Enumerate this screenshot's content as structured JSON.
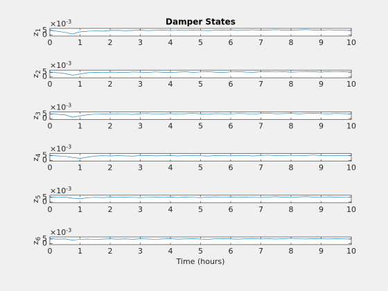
{
  "chart_data": [
    {
      "type": "line",
      "title": "Damper States",
      "ylabel": "z",
      "ylabel_subscript": "1",
      "exponent_base": "×10",
      "exponent_power": "-3",
      "x": [
        0,
        0.25,
        0.5,
        0.75,
        1,
        1.25,
        1.5,
        1.75,
        2,
        2.25,
        2.5,
        2.75,
        3,
        3.25,
        3.5,
        3.75,
        4,
        4.25,
        4.5,
        4.75,
        5,
        5.25,
        5.5,
        5.75,
        6,
        6.25,
        6.5,
        6.75,
        7,
        7.25,
        7.5,
        7.75,
        8,
        8.25,
        8.5,
        8.75,
        9,
        9.25,
        9.5,
        9.75,
        10
      ],
      "series": [
        {
          "color": "#0072bd",
          "values": [
            0.0052,
            0.0041,
            0.003,
            0.0012,
            0.0035,
            0.0042,
            0.0046,
            0.0043,
            0.0049,
            0.0051,
            0.0047,
            0.005,
            0.0053,
            0.0048,
            0.0051,
            0.0054,
            0.0049,
            0.0052,
            0.005,
            0.0055,
            0.0051,
            0.0048,
            0.0052,
            0.0056,
            0.0053,
            0.005,
            0.0054,
            0.0057,
            0.0052,
            0.0055,
            0.0058,
            0.0054,
            0.0051,
            0.0056,
            0.0059,
            0.0055,
            0.0052,
            0.0057,
            0.0054,
            0.0051,
            0.0049
          ]
        }
      ],
      "xlim": [
        0,
        10
      ],
      "xticks": [
        0,
        1,
        2,
        3,
        4,
        5,
        6,
        7,
        8,
        9,
        10
      ],
      "ylim": [
        -0.001,
        0.0072
      ],
      "yticks": [
        0,
        {
          "value": 0.005,
          "label": "5"
        }
      ]
    },
    {
      "type": "line",
      "ylabel": "z",
      "ylabel_subscript": "2",
      "exponent_base": "×10",
      "exponent_power": "-3",
      "x": [
        0,
        0.25,
        0.5,
        0.75,
        1,
        1.25,
        1.5,
        1.75,
        2,
        2.25,
        2.5,
        2.75,
        3,
        3.25,
        3.5,
        3.75,
        4,
        4.25,
        4.5,
        4.75,
        5,
        5.25,
        5.5,
        5.75,
        6,
        6.25,
        6.5,
        6.75,
        7,
        7.25,
        7.5,
        7.75,
        8,
        8.25,
        8.5,
        8.75,
        9,
        9.25,
        9.5,
        9.75,
        10
      ],
      "series": [
        {
          "color": "#0072bd",
          "values": [
            0.0048,
            0.0044,
            0.0036,
            0.0018,
            0.003,
            0.0044,
            0.0048,
            0.0045,
            0.0051,
            0.0049,
            0.0046,
            0.0052,
            0.005,
            0.0047,
            0.0053,
            0.0049,
            0.0046,
            0.0051,
            0.0054,
            0.0048,
            0.0052,
            0.0055,
            0.005,
            0.0047,
            0.0053,
            0.0056,
            0.0051,
            0.0049,
            0.0054,
            0.0057,
            0.0052,
            0.0055,
            0.005,
            0.0053,
            0.0058,
            0.0054,
            0.0051,
            0.0056,
            0.0053,
            0.0055,
            0.005
          ]
        }
      ],
      "xlim": [
        0,
        10
      ],
      "xticks": [
        0,
        1,
        2,
        3,
        4,
        5,
        6,
        7,
        8,
        9,
        10
      ],
      "ylim": [
        -0.001,
        0.0072
      ],
      "yticks": [
        0,
        {
          "value": 0.005,
          "label": "5"
        }
      ]
    },
    {
      "type": "line",
      "ylabel": "z",
      "ylabel_subscript": "3",
      "exponent_base": "×10",
      "exponent_power": "-3",
      "x": [
        0,
        0.25,
        0.5,
        0.75,
        1,
        1.25,
        1.5,
        1.75,
        2,
        2.25,
        2.5,
        2.75,
        3,
        3.25,
        3.5,
        3.75,
        4,
        4.25,
        4.5,
        4.75,
        5,
        5.25,
        5.5,
        5.75,
        6,
        6.25,
        6.5,
        6.75,
        7,
        7.25,
        7.5,
        7.75,
        8,
        8.25,
        8.5,
        8.75,
        9,
        9.25,
        9.5,
        9.75,
        10
      ],
      "series": [
        {
          "color": "#0072bd",
          "values": [
            0.005,
            0.0046,
            0.004,
            0.0015,
            0.0028,
            0.0041,
            0.0047,
            0.005,
            0.0046,
            0.0052,
            0.0049,
            0.0045,
            0.0051,
            0.0054,
            0.0048,
            0.005,
            0.0053,
            0.0047,
            0.0052,
            0.0055,
            0.005,
            0.0046,
            0.0053,
            0.0051,
            0.0049,
            0.0055,
            0.0052,
            0.0048,
            0.0054,
            0.0057,
            0.0051,
            0.0053,
            0.0056,
            0.005,
            0.0054,
            0.0058,
            0.0053,
            0.005,
            0.0055,
            0.0052,
            0.005
          ]
        }
      ],
      "xlim": [
        0,
        10
      ],
      "xticks": [
        0,
        1,
        2,
        3,
        4,
        5,
        6,
        7,
        8,
        9,
        10
      ],
      "ylim": [
        -0.001,
        0.0072
      ],
      "yticks": [
        0,
        {
          "value": 0.005,
          "label": "5"
        }
      ]
    },
    {
      "type": "line",
      "ylabel": "z",
      "ylabel_subscript": "4",
      "exponent_base": "×10",
      "exponent_power": "-3",
      "x": [
        0,
        0.25,
        0.5,
        0.75,
        1,
        1.25,
        1.5,
        1.75,
        2,
        2.25,
        2.5,
        2.75,
        3,
        3.25,
        3.5,
        3.75,
        4,
        4.25,
        4.5,
        4.75,
        5,
        5.25,
        5.5,
        5.75,
        6,
        6.25,
        6.5,
        6.75,
        7,
        7.25,
        7.5,
        7.75,
        8,
        8.25,
        8.5,
        8.75,
        9,
        9.25,
        9.5,
        9.75,
        10
      ],
      "series": [
        {
          "color": "#0072bd",
          "values": [
            0.0051,
            0.0047,
            0.0042,
            0.003,
            0.002,
            0.0033,
            0.0045,
            0.0049,
            0.0046,
            0.005,
            0.0047,
            0.0044,
            0.005,
            0.0052,
            0.0047,
            0.0049,
            0.0051,
            0.0046,
            0.005,
            0.0053,
            0.0048,
            0.0045,
            0.0051,
            0.0049,
            0.0047,
            0.0053,
            0.005,
            0.0046,
            0.0052,
            0.0055,
            0.0049,
            0.0051,
            0.0054,
            0.0048,
            0.0052,
            0.0056,
            0.0051,
            0.0048,
            0.0053,
            0.005,
            0.0048
          ]
        }
      ],
      "xlim": [
        0,
        10
      ],
      "xticks": [
        0,
        1,
        2,
        3,
        4,
        5,
        6,
        7,
        8,
        9,
        10
      ],
      "ylim": [
        -0.001,
        0.0072
      ],
      "yticks": [
        0,
        {
          "value": 0.005,
          "label": "5"
        }
      ]
    },
    {
      "type": "line",
      "ylabel": "z",
      "ylabel_subscript": "5",
      "exponent_base": "×10",
      "exponent_power": "-3",
      "x": [
        0,
        0.25,
        0.5,
        0.75,
        1,
        1.25,
        1.5,
        1.75,
        2,
        2.25,
        2.5,
        2.75,
        3,
        3.25,
        3.5,
        3.75,
        4,
        4.25,
        4.5,
        4.75,
        5,
        5.25,
        5.5,
        5.75,
        6,
        6.25,
        6.5,
        6.75,
        7,
        7.25,
        7.5,
        7.75,
        8,
        8.25,
        8.5,
        8.75,
        9,
        9.25,
        9.5,
        9.75,
        10
      ],
      "series": [
        {
          "color": "#0072bd",
          "values": [
            0.0053,
            0.0049,
            0.0052,
            0.004,
            0.0034,
            0.0046,
            0.005,
            0.0047,
            0.0052,
            0.0049,
            0.0053,
            0.005,
            0.0047,
            0.0051,
            0.0054,
            0.0049,
            0.0052,
            0.0048,
            0.0053,
            0.005,
            0.0047,
            0.0052,
            0.0055,
            0.005,
            0.0053,
            0.0049,
            0.0054,
            0.0051,
            0.0048,
            0.0053,
            0.0056,
            0.0052,
            0.0049,
            0.0054,
            0.0057,
            0.0053,
            0.005,
            0.0055,
            0.0052,
            0.0049,
            0.0051
          ]
        }
      ],
      "xlim": [
        0,
        10
      ],
      "xticks": [
        0,
        1,
        2,
        3,
        4,
        5,
        6,
        7,
        8,
        9,
        10
      ],
      "ylim": [
        -0.001,
        0.0072
      ],
      "yticks": [
        0,
        {
          "value": 0.005,
          "label": "5"
        }
      ]
    },
    {
      "type": "line",
      "ylabel": "z",
      "ylabel_subscript": "6",
      "exponent_base": "×10",
      "exponent_power": "-3",
      "xlabel": "Time (hours)",
      "x": [
        0,
        0.25,
        0.5,
        0.75,
        1,
        1.25,
        1.5,
        1.75,
        2,
        2.25,
        2.5,
        2.75,
        3,
        3.25,
        3.5,
        3.75,
        4,
        4.25,
        4.5,
        4.75,
        5,
        5.25,
        5.5,
        5.75,
        6,
        6.25,
        6.5,
        6.75,
        7,
        7.25,
        7.5,
        7.75,
        8,
        8.25,
        8.5,
        8.75,
        9,
        9.25,
        9.5,
        9.75,
        10
      ],
      "series": [
        {
          "color": "#0072bd",
          "values": [
            0.0054,
            0.0048,
            0.0051,
            0.0038,
            0.0046,
            0.005,
            0.0044,
            0.0049,
            0.0052,
            0.0048,
            0.0051,
            0.0047,
            0.0052,
            0.005,
            0.0046,
            0.0051,
            0.0053,
            0.0048,
            0.0051,
            0.0054,
            0.0049,
            0.0047,
            0.0052,
            0.0055,
            0.0051,
            0.0048,
            0.0053,
            0.0056,
            0.005,
            0.0053,
            0.0049,
            0.0054,
            0.0057,
            0.0052,
            0.005,
            0.0055,
            0.0053,
            0.005,
            0.0054,
            0.0051,
            0.0049
          ]
        }
      ],
      "xlim": [
        0,
        10
      ],
      "xticks": [
        0,
        1,
        2,
        3,
        4,
        5,
        6,
        7,
        8,
        9,
        10
      ],
      "ylim": [
        -0.001,
        0.0072
      ],
      "yticks": [
        0,
        {
          "value": 0.005,
          "label": "5"
        }
      ]
    }
  ]
}
